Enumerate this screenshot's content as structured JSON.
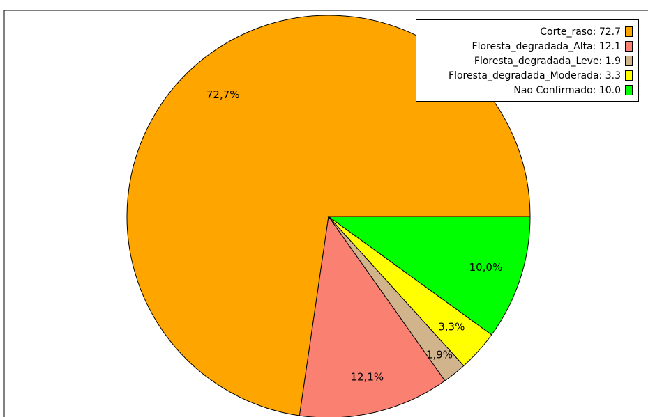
{
  "chart_data": {
    "type": "pie",
    "title": "",
    "slices": [
      {
        "label": "Corte_raso",
        "value": 72.7,
        "percent_label": "72,7%",
        "legend_text": "Corte_raso: 72.7",
        "color": "#FFA500"
      },
      {
        "label": "Floresta_degradada_Alta",
        "value": 12.1,
        "percent_label": "12,1%",
        "legend_text": "Floresta_degradada_Alta: 12.1",
        "color": "#FA8072"
      },
      {
        "label": "Floresta_degradada_Leve",
        "value": 1.9,
        "percent_label": "1,9%",
        "legend_text": "Floresta_degradada_Leve: 1.9",
        "color": "#D2B48C"
      },
      {
        "label": "Floresta_degradada_Moderada",
        "value": 3.3,
        "percent_label": "3,3%",
        "legend_text": "Floresta_degradada_Moderada: 3.3",
        "color": "#FFFF00"
      },
      {
        "label": "Nao Confirmado",
        "value": 10.0,
        "percent_label": "10,0%",
        "legend_text": "Nao Confirmado: 10.0",
        "color": "#00FF00"
      }
    ],
    "start_direction": "east",
    "direction": "clockwise",
    "legend_position": "top-right"
  }
}
